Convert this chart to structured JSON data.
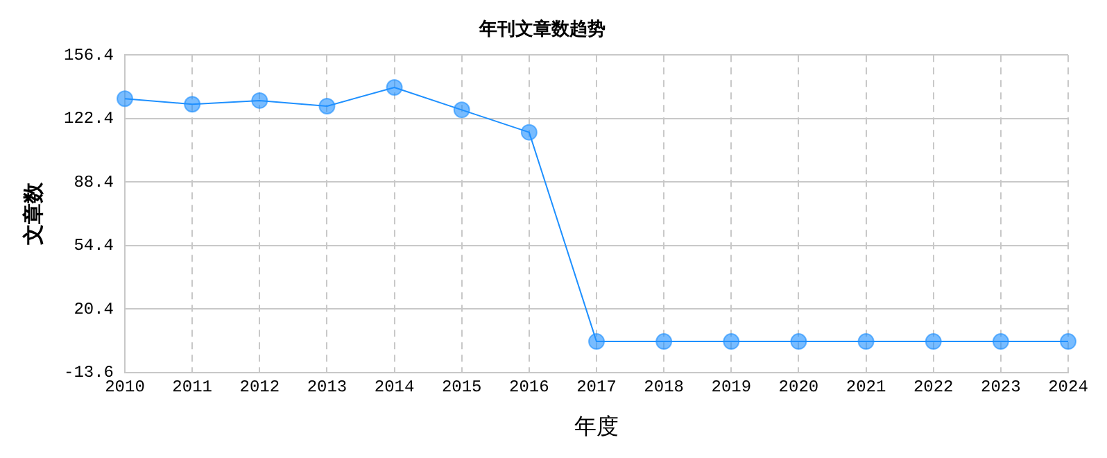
{
  "chart_data": {
    "type": "line",
    "title": "年刊文章数趋势",
    "xlabel": "年度",
    "ylabel": "文章数",
    "categories": [
      "2010",
      "2011",
      "2012",
      "2013",
      "2014",
      "2015",
      "2016",
      "2017",
      "2018",
      "2019",
      "2020",
      "2021",
      "2022",
      "2023",
      "2024"
    ],
    "series": [
      {
        "color": "#1e90ff",
        "values": [
          133,
          130,
          132,
          129,
          139,
          127,
          115,
          3,
          3,
          3,
          3,
          3,
          3,
          3,
          3
        ]
      }
    ],
    "ylim": [
      -13.6,
      156.4
    ],
    "yticks": [
      {
        "value": -13.6,
        "label": "-13.6"
      },
      {
        "value": 20.4,
        "label": "20.4"
      },
      {
        "value": 54.4,
        "label": "54.4"
      },
      {
        "value": 88.4,
        "label": "88.4"
      },
      {
        "value": 122.4,
        "label": "122.4"
      },
      {
        "value": 156.4,
        "label": "156.4"
      }
    ],
    "grid": true,
    "legend": false,
    "marker": "circle",
    "line_style": "solid"
  }
}
